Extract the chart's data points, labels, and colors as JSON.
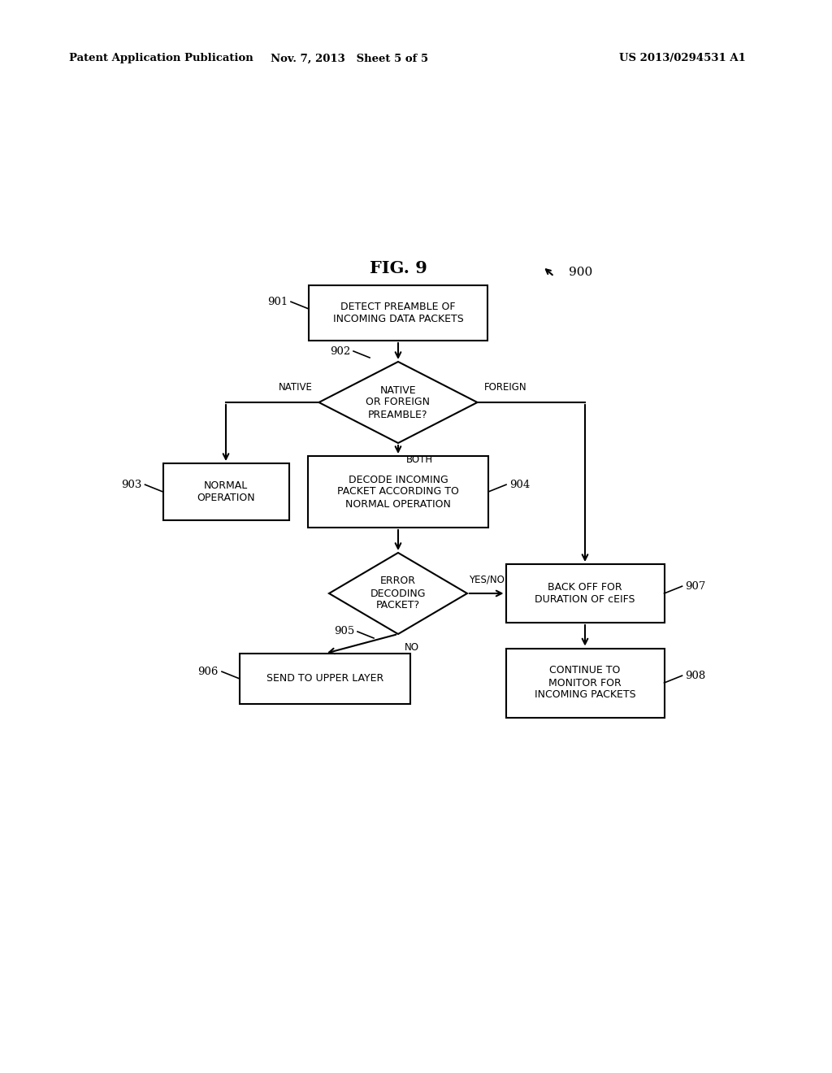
{
  "fig_title": "FIG. 9",
  "header_left": "Patent Application Publication",
  "header_mid": "Nov. 7, 2013   Sheet 5 of 5",
  "header_right": "US 2013/0294531 A1",
  "fig_label": "900",
  "background_color": "#ffffff",
  "node_901_label": "DETECT PREAMBLE OF\nINCOMING DATA PACKETS",
  "node_902_label": "NATIVE\nOR FOREIGN\nPREAMBLE?",
  "node_903_label": "NORMAL\nOPERATION",
  "node_904_label": "DECODE INCOMING\nPACKET ACCORDING TO\nNORMAL OPERATION",
  "node_905_label": "ERROR\nDECODING\nPACKET?",
  "node_906_label": "SEND TO UPPER LAYER",
  "node_907_label": "BACK OFF FOR\nDURATION OF cEIFS",
  "node_908_label": "CONTINUE TO\nMONITOR FOR\nINCOMING PACKETS",
  "label_native": "NATIVE",
  "label_foreign": "FOREIGN",
  "label_both": "BOTH",
  "label_no": "NO",
  "label_yesno": "YES/NO"
}
